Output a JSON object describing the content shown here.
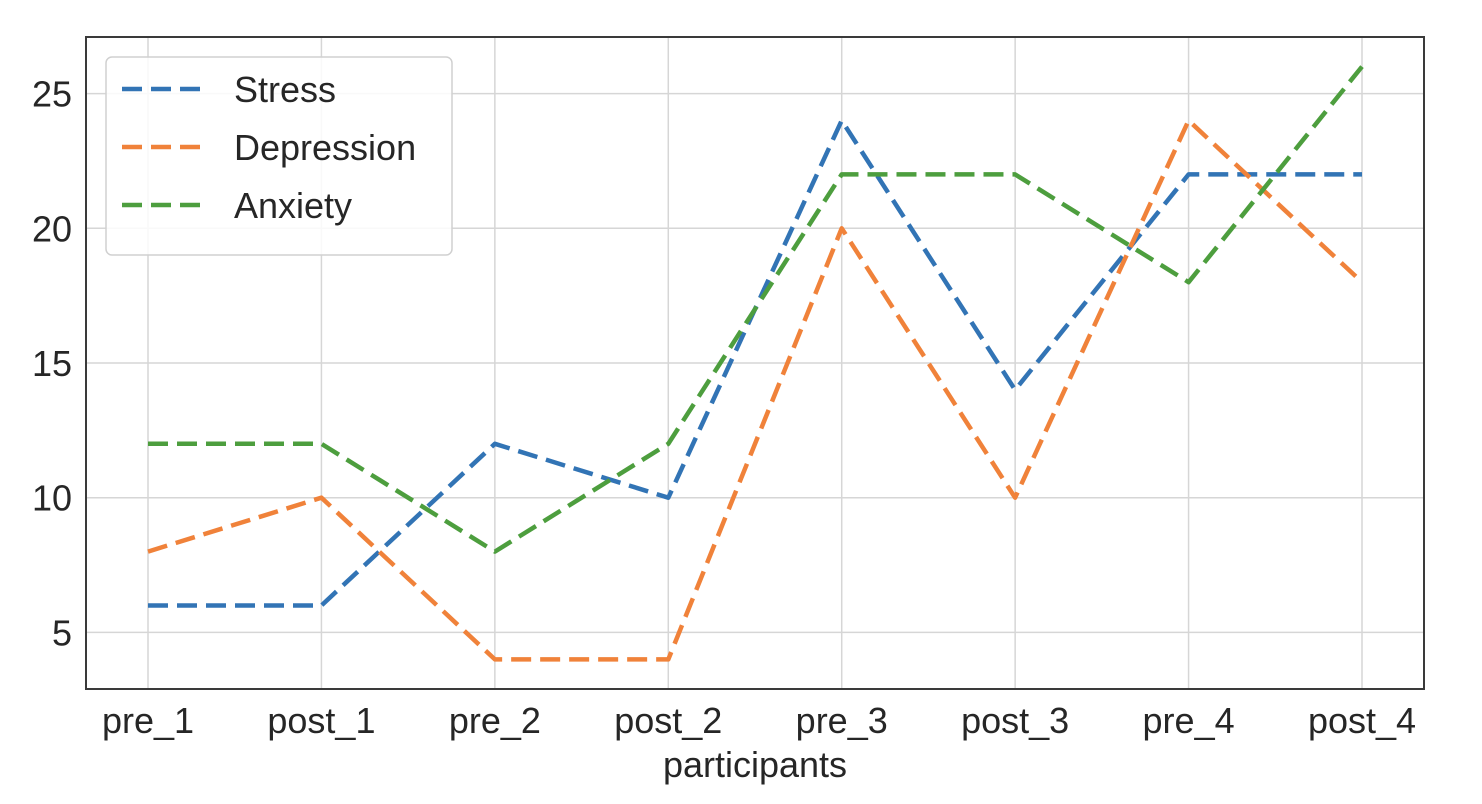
{
  "chart_data": {
    "type": "line",
    "title": "",
    "xlabel": "participants",
    "ylabel": "",
    "categories": [
      "pre_1",
      "post_1",
      "pre_2",
      "post_2",
      "pre_3",
      "post_3",
      "pre_4",
      "post_4"
    ],
    "series": [
      {
        "name": "Stress",
        "color": "#3274b5",
        "line_style": "dashed",
        "values": [
          6,
          6,
          12,
          10,
          24,
          14,
          22,
          22
        ]
      },
      {
        "name": "Depression",
        "color": "#f0823a",
        "line_style": "dashed",
        "values": [
          8,
          10,
          4,
          4,
          20,
          10,
          24,
          18
        ]
      },
      {
        "name": "Anxiety",
        "color": "#4d9e3e",
        "line_style": "dashed",
        "values": [
          12,
          12,
          8,
          12,
          22,
          22,
          18,
          26
        ]
      }
    ],
    "ylim": [
      2.9,
      27.1
    ],
    "yticks": [
      5,
      10,
      15,
      20,
      25
    ],
    "grid": true,
    "legend_position": "top-left"
  }
}
